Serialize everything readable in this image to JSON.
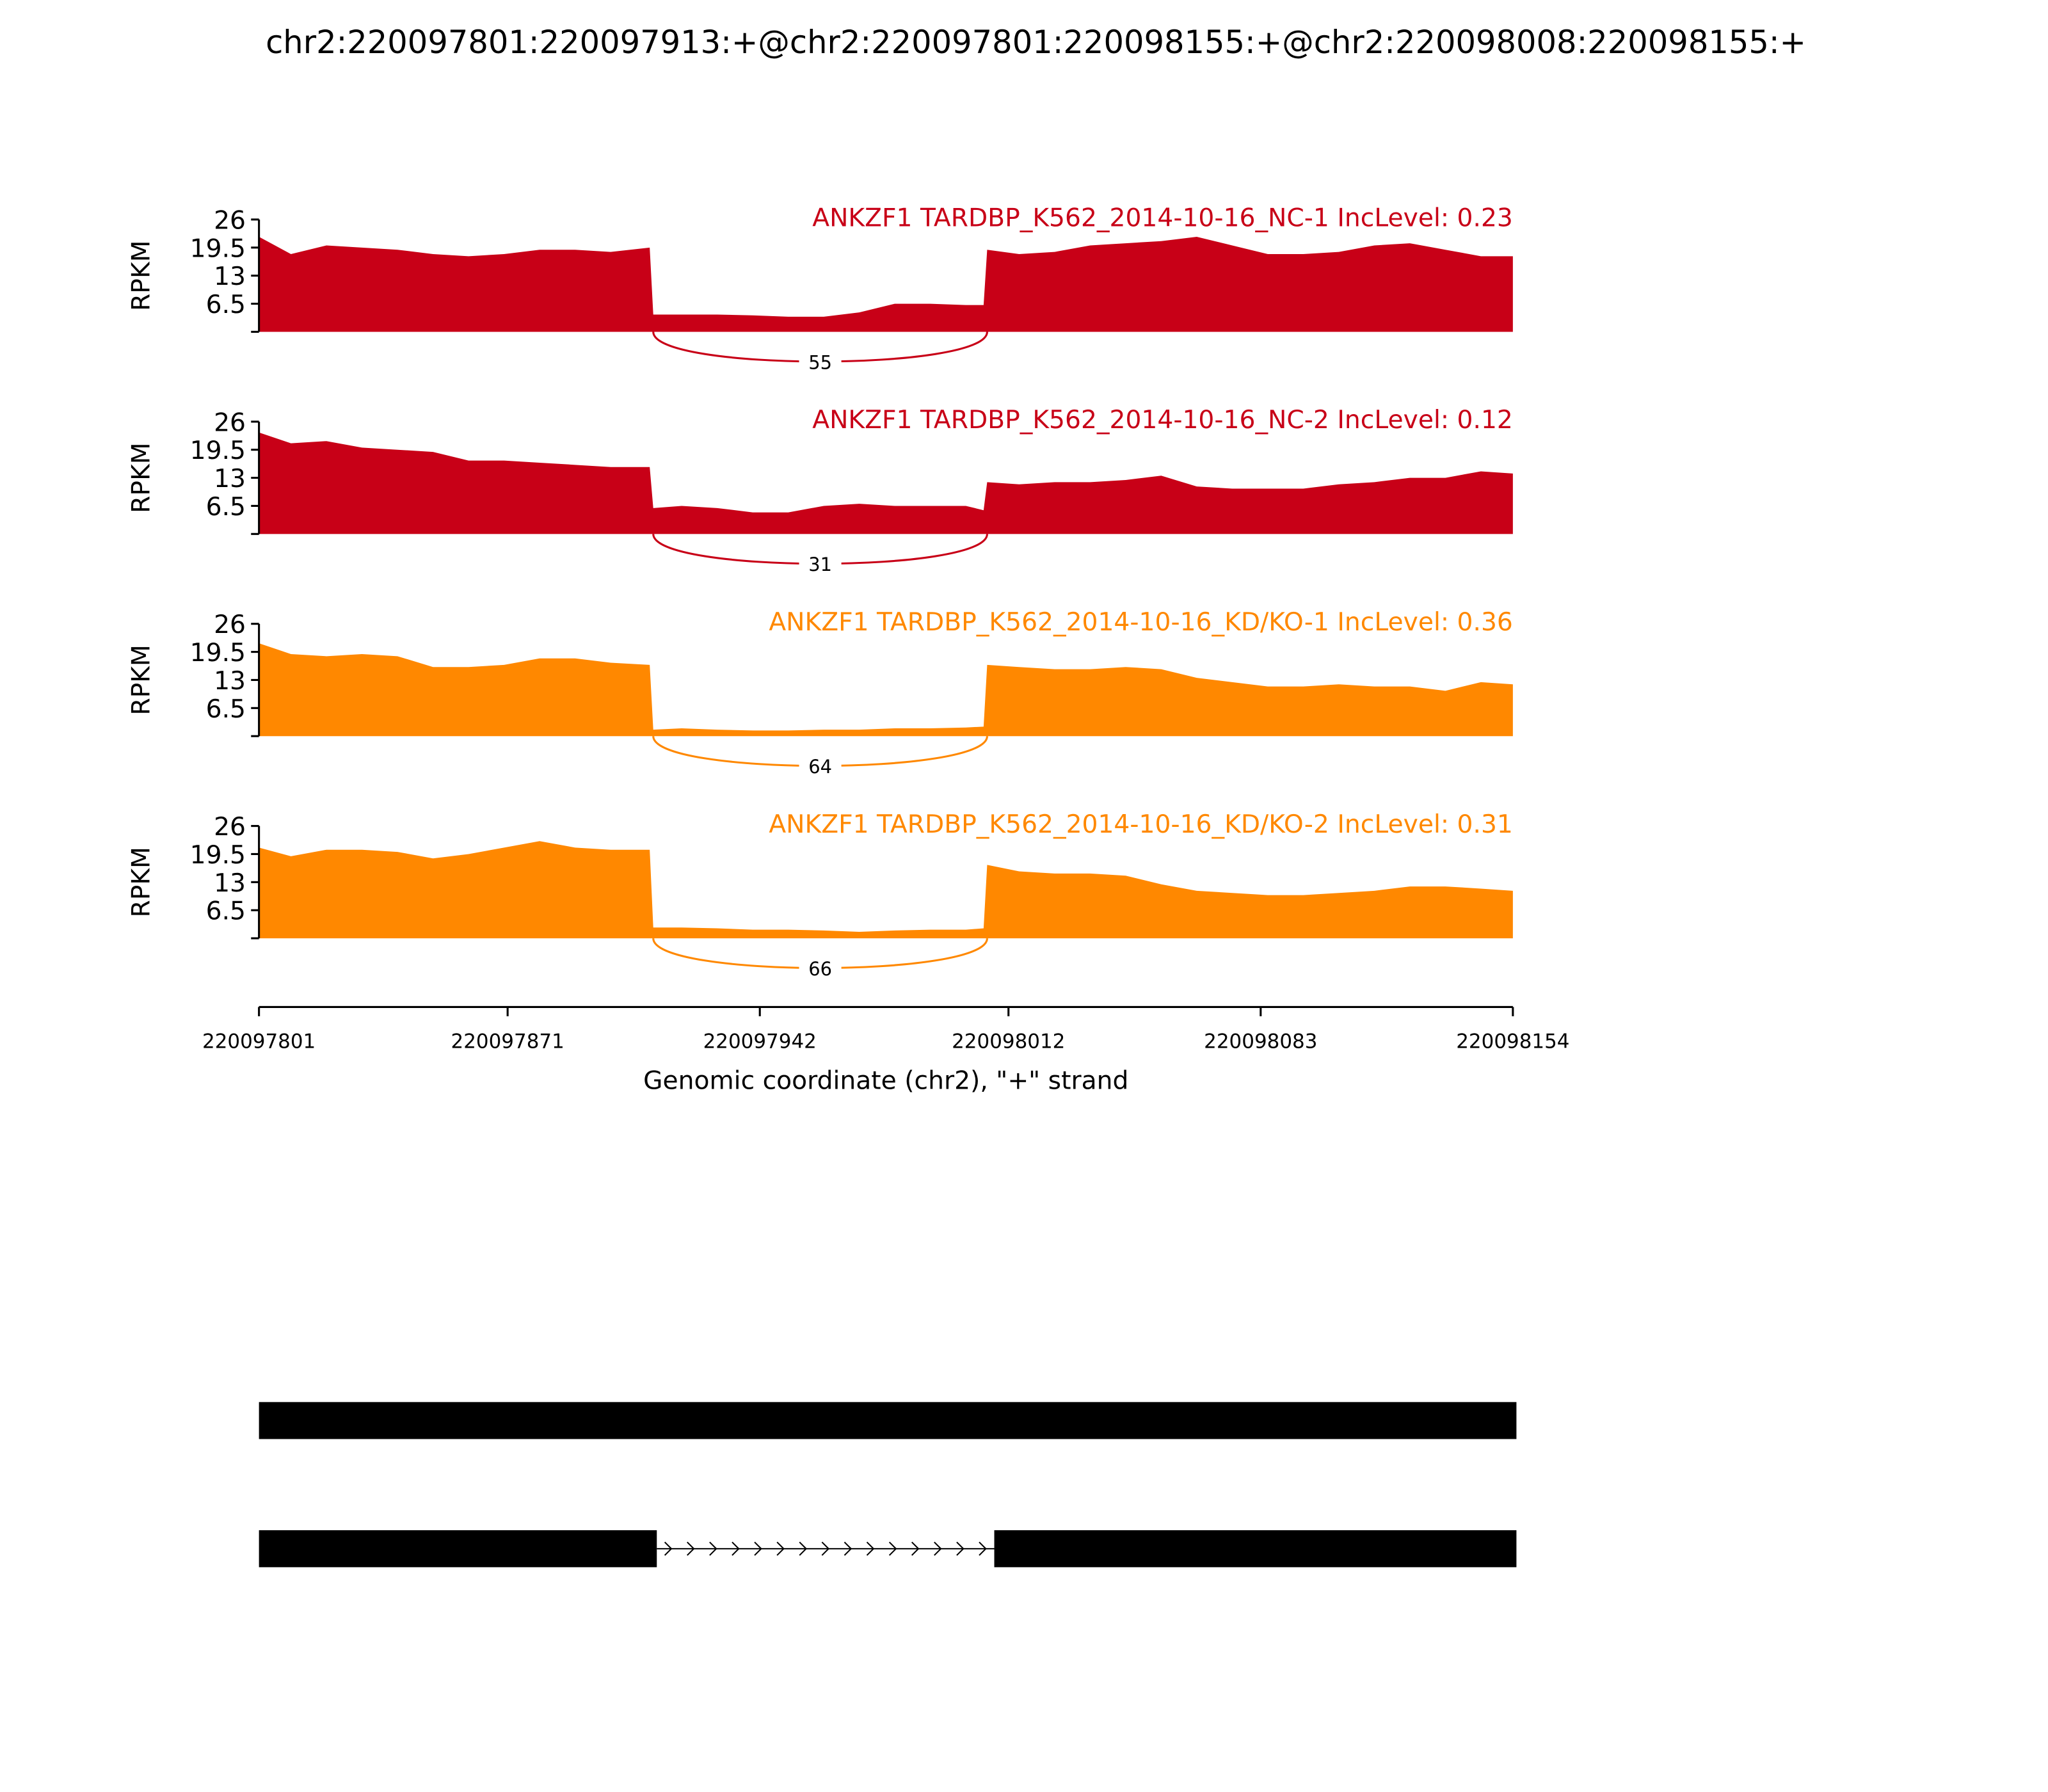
{
  "title": "chr2:220097801:220097913:+@chr2:220097801:220098155:+@chr2:220098008:220098155:+",
  "chart_data": [
    {
      "type": "area",
      "title": "ANKZF1 TARDBP_K562_2014-10-16_NC-1 IncLevel: 0.23",
      "ylabel": "RPKM",
      "color": "#c80017",
      "xlim": [
        220097801,
        220098154
      ],
      "ylim": [
        0,
        26
      ],
      "yticks": [
        6.5,
        13,
        19.5,
        26
      ],
      "x": [
        220097801,
        220097810,
        220097820,
        220097830,
        220097840,
        220097850,
        220097860,
        220097870,
        220097880,
        220097890,
        220097900,
        220097911,
        220097912,
        220097920,
        220097930,
        220097940,
        220097950,
        220097960,
        220097970,
        220097980,
        220097990,
        220098000,
        220098005,
        220098006,
        220098015,
        220098025,
        220098035,
        220098045,
        220098055,
        220098065,
        220098075,
        220098085,
        220098095,
        220098105,
        220098115,
        220098125,
        220098135,
        220098145,
        220098154
      ],
      "values": [
        22,
        18,
        20,
        19.5,
        19,
        18,
        17.5,
        18,
        19,
        19,
        18.5,
        19.5,
        4,
        4,
        4,
        3.8,
        3.5,
        3.5,
        4.5,
        6.5,
        6.5,
        6.2,
        6.2,
        19,
        18,
        18.5,
        20,
        20.5,
        21,
        22,
        20,
        18,
        18,
        18.5,
        20,
        20.5,
        19,
        17.5,
        17.5
      ],
      "junction": {
        "from": 220097912,
        "to": 220098006,
        "count": 55
      }
    },
    {
      "type": "area",
      "title": "ANKZF1 TARDBP_K562_2014-10-16_NC-2 IncLevel: 0.12",
      "ylabel": "RPKM",
      "color": "#c80017",
      "xlim": [
        220097801,
        220098154
      ],
      "ylim": [
        0,
        26
      ],
      "yticks": [
        6.5,
        13,
        19.5,
        26
      ],
      "x": [
        220097801,
        220097810,
        220097820,
        220097830,
        220097840,
        220097850,
        220097860,
        220097870,
        220097880,
        220097890,
        220097900,
        220097911,
        220097912,
        220097920,
        220097930,
        220097940,
        220097950,
        220097960,
        220097970,
        220097980,
        220097990,
        220098000,
        220098005,
        220098006,
        220098015,
        220098025,
        220098035,
        220098045,
        220098055,
        220098065,
        220098075,
        220098085,
        220098095,
        220098105,
        220098115,
        220098125,
        220098135,
        220098145,
        220098154
      ],
      "values": [
        23.5,
        21,
        21.5,
        20,
        19.5,
        19,
        17,
        17,
        16.5,
        16,
        15.5,
        15.5,
        6,
        6.5,
        6,
        5,
        5,
        6.5,
        7,
        6.5,
        6.5,
        6.5,
        5.5,
        12,
        11.5,
        12,
        12,
        12.5,
        13.5,
        11,
        10.5,
        10.5,
        10.5,
        11.5,
        12,
        13,
        13,
        14.5,
        14
      ],
      "junction": {
        "from": 220097912,
        "to": 220098006,
        "count": 31
      }
    },
    {
      "type": "area",
      "title": "ANKZF1 TARDBP_K562_2014-10-16_KD/KO-1 IncLevel: 0.36",
      "ylabel": "RPKM",
      "color": "#ff8800",
      "xlim": [
        220097801,
        220098154
      ],
      "ylim": [
        0,
        26
      ],
      "yticks": [
        6.5,
        13,
        19.5,
        26
      ],
      "x": [
        220097801,
        220097810,
        220097820,
        220097830,
        220097840,
        220097850,
        220097860,
        220097870,
        220097880,
        220097890,
        220097900,
        220097911,
        220097912,
        220097920,
        220097930,
        220097940,
        220097950,
        220097960,
        220097970,
        220097980,
        220097990,
        220098000,
        220098005,
        220098006,
        220098015,
        220098025,
        220098035,
        220098045,
        220098055,
        220098065,
        220098075,
        220098085,
        220098095,
        220098105,
        220098115,
        220098125,
        220098135,
        220098145,
        220098154
      ],
      "values": [
        21.5,
        19,
        18.5,
        19,
        18.5,
        16,
        16,
        16.5,
        18,
        18,
        17,
        16.5,
        1.5,
        1.8,
        1.5,
        1.3,
        1.3,
        1.5,
        1.5,
        1.8,
        1.8,
        2,
        2.2,
        16.5,
        16,
        15.5,
        15.5,
        16,
        15.5,
        13.5,
        12.5,
        11.5,
        11.5,
        12,
        11.5,
        11.5,
        10.5,
        12.5,
        12
      ],
      "junction": {
        "from": 220097912,
        "to": 220098006,
        "count": 64
      }
    },
    {
      "type": "area",
      "title": "ANKZF1 TARDBP_K562_2014-10-16_KD/KO-2 IncLevel: 0.31",
      "ylabel": "RPKM",
      "color": "#ff8800",
      "xlim": [
        220097801,
        220098154
      ],
      "ylim": [
        0,
        26
      ],
      "yticks": [
        6.5,
        13,
        19.5,
        26
      ],
      "x": [
        220097801,
        220097810,
        220097820,
        220097830,
        220097840,
        220097850,
        220097860,
        220097870,
        220097880,
        220097890,
        220097900,
        220097911,
        220097912,
        220097920,
        220097930,
        220097940,
        220097950,
        220097960,
        220097970,
        220097980,
        220097990,
        220098000,
        220098005,
        220098006,
        220098015,
        220098025,
        220098035,
        220098045,
        220098055,
        220098065,
        220098075,
        220098085,
        220098095,
        220098105,
        220098115,
        220098125,
        220098135,
        220098145,
        220098154
      ],
      "values": [
        21,
        19,
        20.5,
        20.5,
        20,
        18.5,
        19.5,
        21,
        22.5,
        21,
        20.5,
        20.5,
        2.5,
        2.5,
        2.3,
        2,
        2,
        1.8,
        1.5,
        1.8,
        2,
        2,
        2.3,
        17,
        15.5,
        15,
        15,
        14.5,
        12.5,
        11,
        10.5,
        10,
        10,
        10.5,
        11,
        12,
        12,
        11.5,
        11
      ],
      "junction": {
        "from": 220097912,
        "to": 220098006,
        "count": 66
      },
      "xticks": [
        220097801,
        220097871,
        220097942,
        220098012,
        220098083,
        220098154
      ],
      "xlabel": "Genomic coordinate (chr2), \"+\" strand"
    }
  ],
  "gene_model": {
    "isoforms": [
      [
        [
          220097801,
          220098155
        ]
      ],
      [
        [
          220097801,
          220097913
        ],
        [
          220098008,
          220098155
        ]
      ]
    ]
  }
}
